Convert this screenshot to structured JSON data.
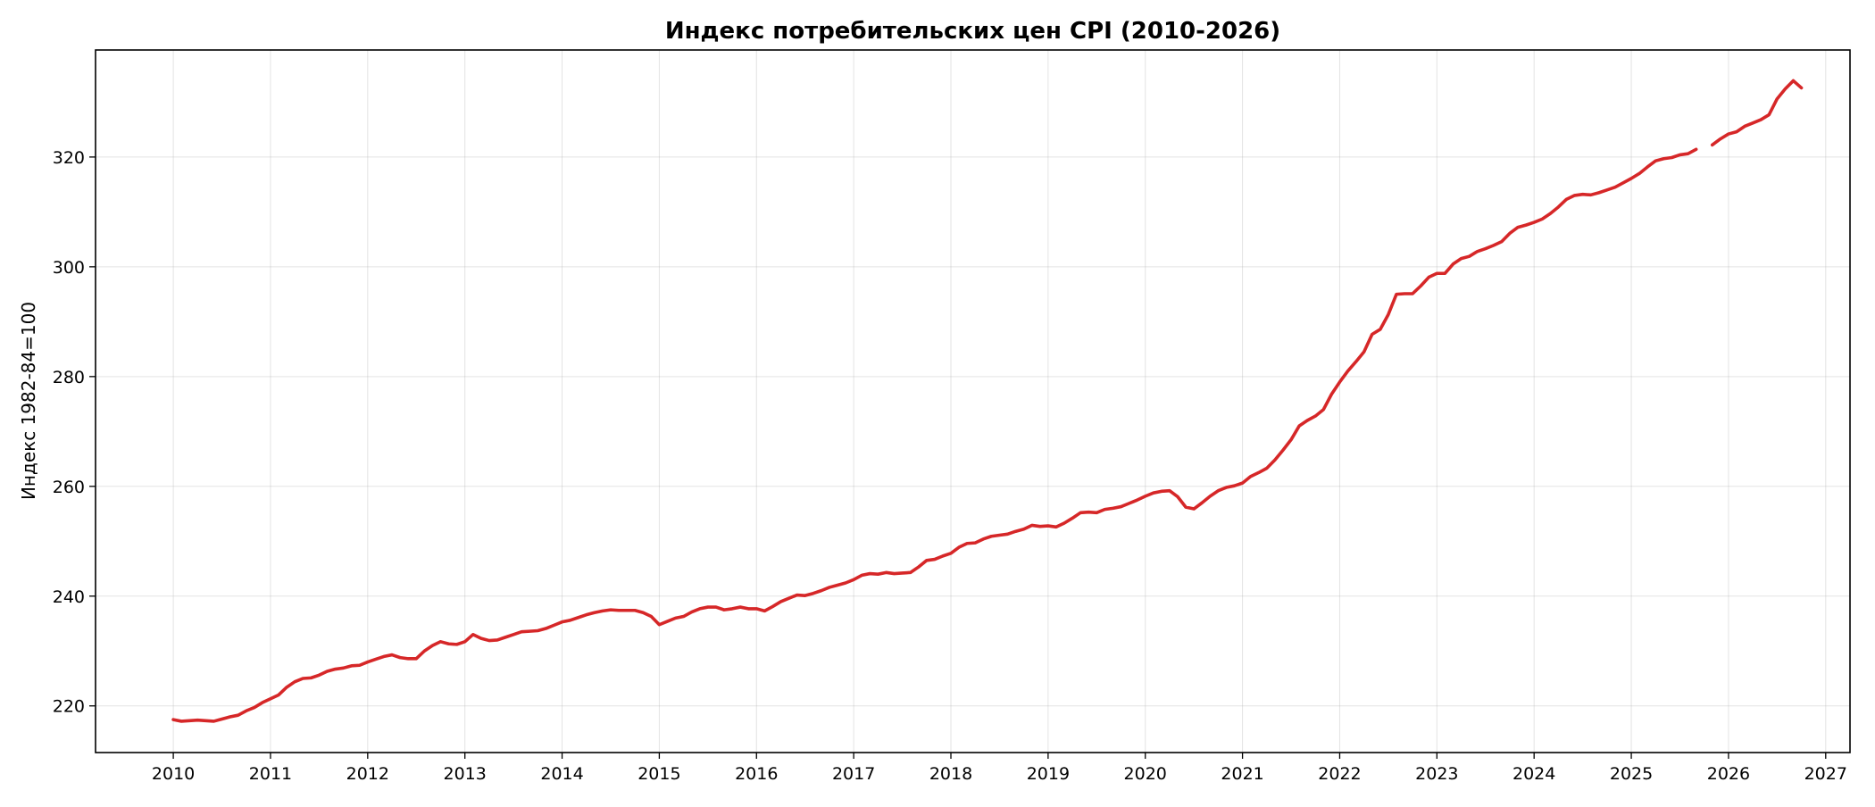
{
  "chart_data": {
    "type": "line",
    "title": "Индекс потребительских цен CPI (2010-2026)",
    "xlabel": "",
    "ylabel": "Индекс 1982-84=100",
    "xlim": [
      2009.2,
      2027.25
    ],
    "ylim": [
      211.5,
      339.5
    ],
    "x_ticks": [
      2010,
      2011,
      2012,
      2013,
      2014,
      2015,
      2016,
      2017,
      2018,
      2019,
      2020,
      2021,
      2022,
      2023,
      2024,
      2025,
      2026,
      2027
    ],
    "y_ticks": [
      220,
      240,
      260,
      280,
      300,
      320
    ],
    "grid": true,
    "legend": "none",
    "colors": {
      "series": "#d62728",
      "grid": "#b0b0b0",
      "axes": "#000000"
    },
    "series": [
      {
        "values_start": "2010-01",
        "values_step": "1 month",
        "gaps": [
          "2025-10"
        ],
        "values": [
          217.5,
          217.2,
          217.3,
          217.4,
          217.3,
          217.2,
          217.6,
          218.0,
          218.3,
          219.1,
          219.7,
          220.6,
          221.3,
          222.0,
          223.4,
          224.4,
          225.0,
          225.1,
          225.6,
          226.3,
          226.7,
          226.9,
          227.3,
          227.4,
          228.0,
          228.5,
          229.0,
          229.3,
          228.8,
          228.6,
          228.6,
          230.0,
          231.0,
          231.7,
          231.3,
          231.2,
          231.7,
          233.0,
          232.3,
          231.9,
          232.0,
          232.5,
          233.0,
          233.5,
          233.6,
          233.7,
          234.1,
          234.7,
          235.3,
          235.6,
          236.1,
          236.6,
          237.0,
          237.3,
          237.5,
          237.4,
          237.4,
          237.4,
          237.0,
          236.3,
          234.8,
          235.4,
          236.0,
          236.3,
          237.1,
          237.7,
          238.0,
          238.0,
          237.5,
          237.7,
          238.0,
          237.7,
          237.7,
          237.3,
          238.1,
          239.0,
          239.6,
          240.2,
          240.1,
          240.5,
          241.0,
          241.6,
          242.0,
          242.4,
          243.0,
          243.8,
          244.1,
          244.0,
          244.3,
          244.1,
          244.2,
          244.3,
          245.3,
          246.5,
          246.7,
          247.3,
          247.8,
          248.9,
          249.6,
          249.7,
          250.4,
          250.9,
          251.1,
          251.3,
          251.8,
          252.2,
          252.9,
          252.7,
          252.8,
          252.6,
          253.3,
          254.2,
          255.2,
          255.3,
          255.2,
          255.8,
          256.0,
          256.3,
          256.9,
          257.5,
          258.2,
          258.8,
          259.1,
          259.2,
          258.1,
          256.2,
          255.9,
          257.0,
          258.2,
          259.2,
          259.8,
          260.1,
          260.6,
          261.8,
          262.5,
          263.3,
          264.8,
          266.6,
          268.5,
          271.0,
          272.0,
          272.8,
          274.0,
          276.8,
          279.0,
          281.0,
          282.7,
          284.5,
          287.7,
          288.6,
          291.3,
          295.0,
          295.1,
          295.1,
          296.5,
          298.1,
          298.8,
          298.8,
          300.5,
          301.5,
          301.9,
          302.8,
          303.3,
          303.9,
          304.6,
          306.1,
          307.2,
          307.6,
          308.1,
          308.7,
          309.7,
          310.9,
          312.3,
          313.0,
          313.2,
          313.1,
          313.5,
          314.0,
          314.5,
          315.3,
          316.1,
          317.0,
          318.2,
          319.3,
          319.7,
          319.9,
          320.4,
          320.6,
          321.4,
          322.2,
          323.3,
          324.2,
          324.6,
          325.6,
          326.2,
          326.8,
          327.7,
          330.6,
          332.4,
          333.9,
          332.6
        ]
      }
    ]
  }
}
